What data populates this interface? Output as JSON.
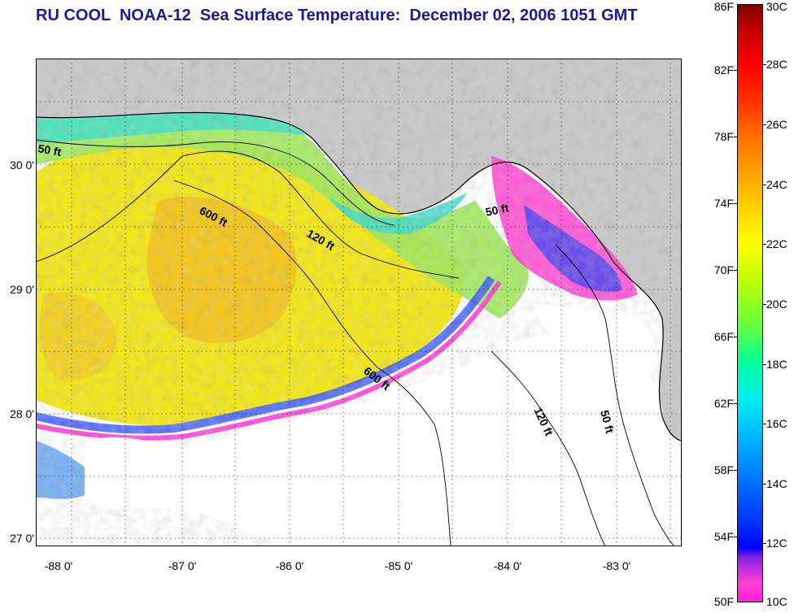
{
  "title": "RU COOL  NOAA-12  Sea Surface Temperature:  December 02, 2006 1051 GMT",
  "title_color": "#1a1aa0",
  "map": {
    "land_color": "#c8c8c8",
    "cloud_color": "#ffffff",
    "grid": "dotted",
    "lon_range": [
      -88.3,
      -82.5
    ],
    "lat_range": [
      26.95,
      30.85
    ],
    "lat_labels": [
      "30 0'",
      "29 0'",
      "28 0'",
      "27 0'"
    ],
    "lon_labels": [
      "-88 0'",
      "-87 0'",
      "-86 0'",
      "-85 0'",
      "-84 0'",
      "-83 0'"
    ],
    "contour_labels": [
      {
        "text": "50 ft"
      },
      {
        "text": "600 ft"
      },
      {
        "text": "120 ft"
      },
      {
        "text": "50 ft"
      },
      {
        "text": "600 ft"
      },
      {
        "text": "120 ft"
      },
      {
        "text": "50 ft"
      }
    ]
  },
  "colorbar": {
    "fahrenheit_labels": [
      "86F",
      "82F",
      "78F",
      "74F",
      "70F",
      "66F",
      "62F",
      "58F",
      "54F",
      "50F"
    ],
    "celsius_labels": [
      "30C",
      "28C",
      "26C",
      "24C",
      "22C",
      "20C",
      "18C",
      "16C",
      "14C",
      "12C",
      "10C"
    ],
    "range_f": [
      50,
      86
    ],
    "range_c": [
      10,
      30
    ]
  }
}
